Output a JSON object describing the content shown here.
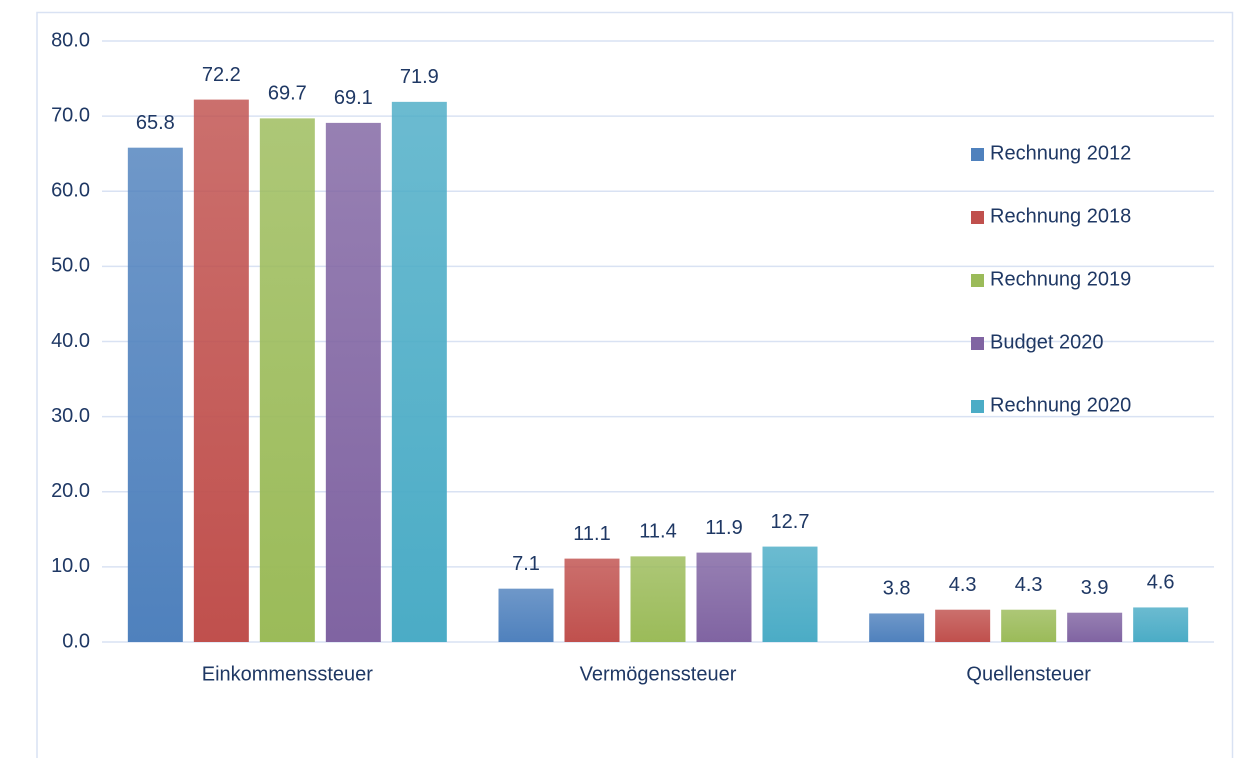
{
  "chart_data": {
    "type": "bar",
    "categories": [
      "Einkommenssteuer",
      "Vermögenssteuer",
      "Quellensteuer"
    ],
    "series": [
      {
        "name": "Rechnung 2012",
        "color": "#4f81bd",
        "values": [
          65.8,
          7.1,
          3.8
        ]
      },
      {
        "name": "Rechnung 2018",
        "color": "#c0504d",
        "values": [
          72.2,
          11.1,
          4.3
        ]
      },
      {
        "name": "Rechnung 2019",
        "color": "#9bbb59",
        "values": [
          69.7,
          11.4,
          4.3
        ]
      },
      {
        "name": "Budget 2020",
        "color": "#8064a2",
        "values": [
          69.1,
          11.9,
          3.9
        ]
      },
      {
        "name": "Rechnung 2020",
        "color": "#4bacc6",
        "values": [
          71.9,
          12.7,
          4.6
        ]
      }
    ],
    "ylim": [
      0,
      80
    ],
    "yticks": [
      {
        "value": 0,
        "label": "0.0"
      },
      {
        "value": 10,
        "label": "10.0"
      },
      {
        "value": 20,
        "label": "20.0"
      },
      {
        "value": 30,
        "label": "30.0"
      },
      {
        "value": 40,
        "label": "40.0"
      },
      {
        "value": 50,
        "label": "50.0"
      },
      {
        "value": 60,
        "label": "60.0"
      },
      {
        "value": 70,
        "label": "70.0"
      },
      {
        "value": 80,
        "label": "80.0"
      }
    ],
    "grid": true,
    "legend": "right"
  }
}
